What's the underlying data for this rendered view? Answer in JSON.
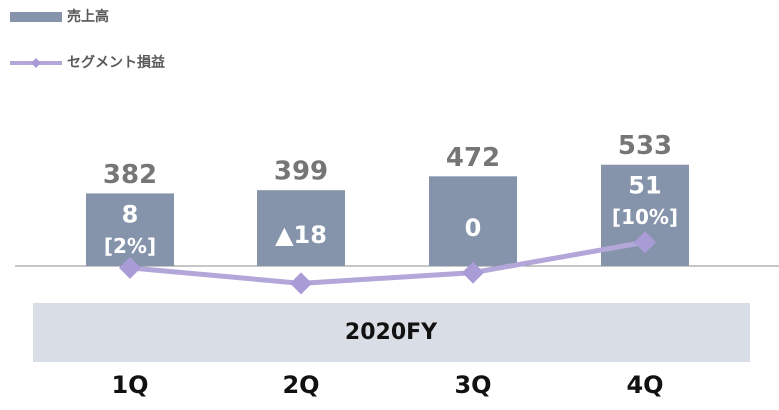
{
  "chart_data": {
    "type": "bar",
    "categories": [
      "1Q",
      "2Q",
      "3Q",
      "4Q"
    ],
    "group_label": "2020FY",
    "ylim": [
      0,
      1400
    ],
    "y2lim": [
      -130,
      290
    ],
    "series": [
      {
        "name": "売上高",
        "type": "bar",
        "color": "#8594ab",
        "values": [
          382,
          399,
          472,
          533
        ]
      },
      {
        "name": "セグメント損益",
        "type": "line",
        "axis": "y2",
        "color": "#b3a6d9",
        "values": [
          8,
          -18,
          0,
          51
        ],
        "value_labels": [
          "8",
          "▲18",
          "0",
          "51"
        ],
        "margin_labels": [
          "[2%]",
          null,
          null,
          "[10%]"
        ]
      }
    ]
  }
}
